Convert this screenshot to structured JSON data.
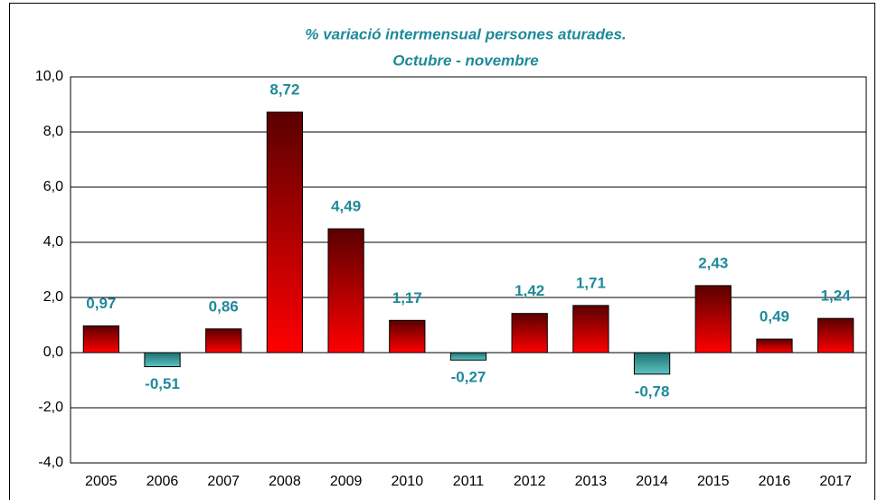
{
  "chart_data": {
    "type": "bar",
    "title": "% variació intermensual persones aturades.",
    "subtitle": "Octubre - novembre",
    "categories": [
      "2005",
      "2006",
      "2007",
      "2008",
      "2009",
      "2010",
      "2011",
      "2012",
      "2013",
      "2014",
      "2015",
      "2016",
      "2017"
    ],
    "values": [
      0.97,
      -0.51,
      0.86,
      8.72,
      4.49,
      1.17,
      -0.27,
      1.42,
      1.71,
      -0.78,
      2.43,
      0.49,
      1.24
    ],
    "value_labels": [
      "0,97",
      "-0,51",
      "0,86",
      "8,72",
      "4,49",
      "1,17",
      "-0,27",
      "1,42",
      "1,71",
      "-0,78",
      "2,43",
      "0,49",
      "1,24"
    ],
    "color": "#ff0000",
    "negative_color": "#5cc4c4",
    "ylim": [
      -4,
      10
    ],
    "yticks": [
      {
        "value": -4,
        "label": "-4,0"
      },
      {
        "value": -2,
        "label": "-2,0"
      },
      {
        "value": 0,
        "label": "0,0"
      },
      {
        "value": 2,
        "label": "2,0"
      },
      {
        "value": 4,
        "label": "4,0"
      },
      {
        "value": 6,
        "label": "6,0"
      },
      {
        "value": 8,
        "label": "8,0"
      },
      {
        "value": 10,
        "label": "10,0"
      }
    ],
    "grid": true
  }
}
